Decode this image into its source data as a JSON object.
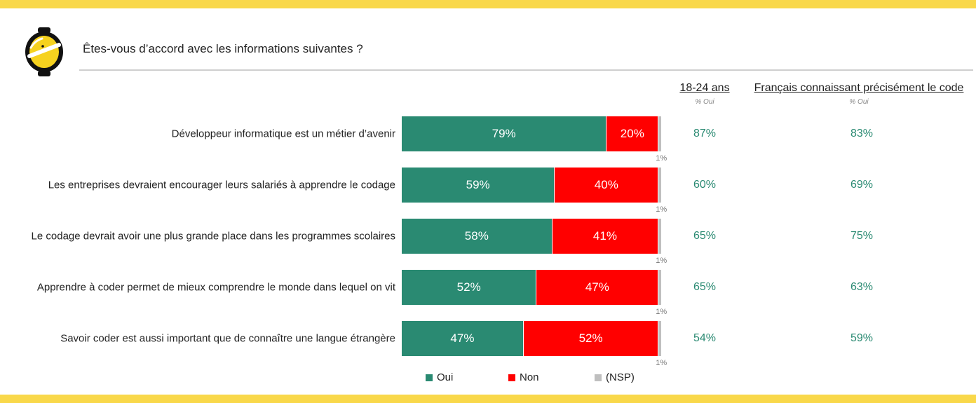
{
  "colors": {
    "band": "#f9d84a",
    "oui": "#2a8a72",
    "non": "#ff0000",
    "nsp": "#bfbfbf",
    "side_value": "#2a8a72"
  },
  "icons": {
    "logo": "lemon-logo-icon"
  },
  "header": {
    "title": "Êtes-vous d’accord avec les informations suivantes ?"
  },
  "columns": [
    {
      "title": "18-24 ans",
      "subtitle": "% Oui"
    },
    {
      "title": "Français connaissant précisément le code",
      "subtitle": "% Oui"
    }
  ],
  "chart_data": {
    "type": "bar",
    "orientation": "horizontal",
    "stacked": true,
    "percent": true,
    "categories": [
      "Développeur informatique est un métier d’avenir",
      "Les entreprises devraient encourager leurs salariés à apprendre le codage",
      "Le codage devrait avoir une plus grande place dans les programmes scolaires",
      "Apprendre à coder permet de mieux comprendre le monde dans lequel on vit",
      "Savoir coder est aussi important que de connaître une langue étrangère"
    ],
    "series": [
      {
        "name": "Oui",
        "values": [
          79,
          59,
          58,
          52,
          47
        ],
        "labels": [
          "79%",
          "59%",
          "58%",
          "52%",
          "47%"
        ]
      },
      {
        "name": "Non",
        "values": [
          20,
          40,
          41,
          47,
          52
        ],
        "labels": [
          "20%",
          "40%",
          "41%",
          "47%",
          "52%"
        ]
      },
      {
        "name": "(NSP)",
        "values": [
          1,
          1,
          1,
          1,
          1
        ],
        "labels": [
          "1%",
          "1%",
          "1%",
          "1%",
          "1%"
        ]
      }
    ],
    "side_columns": [
      {
        "name": "18-24 ans",
        "values": [
          "87%",
          "60%",
          "65%",
          "65%",
          "54%"
        ]
      },
      {
        "name": "Français connaissant précisément le code",
        "values": [
          "83%",
          "69%",
          "75%",
          "63%",
          "59%"
        ]
      }
    ],
    "legend": [
      "Oui",
      "Non",
      "(NSP)"
    ],
    "legend_position": "bottom",
    "grid": false
  }
}
